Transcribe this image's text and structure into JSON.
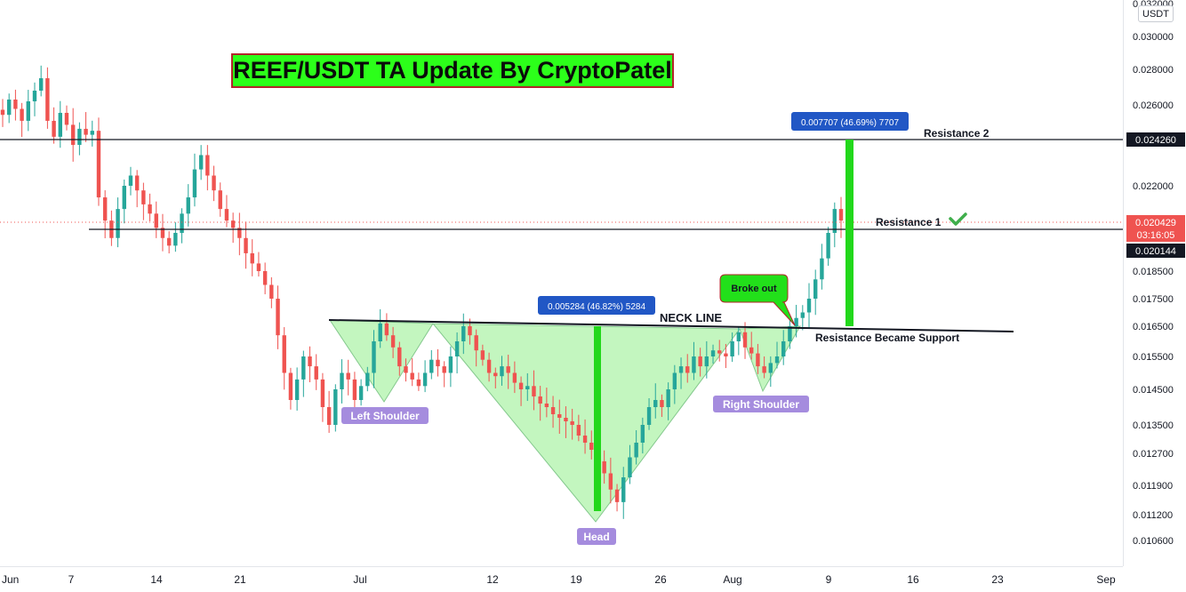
{
  "chart_data": {
    "type": "candlestick",
    "title": "REEF/USDT TA Update By CryptoPatel",
    "currency_unit": "USDT",
    "y_ticks": [
      "0.032000",
      "0.030000",
      "0.028000",
      "0.026000",
      "0.024000",
      "0.022000",
      "0.018500",
      "0.017500",
      "0.016500",
      "0.015500",
      "0.014500",
      "0.013500",
      "0.012700",
      "0.011900",
      "0.011200",
      "0.010600"
    ],
    "x_ticks": [
      "Jun",
      "7",
      "14",
      "21",
      "Jul",
      "12",
      "19",
      "26",
      "Aug",
      "9",
      "16",
      "23",
      "Sep"
    ],
    "price_labels": {
      "resistance2_value": "0.024260",
      "current_price": "0.020429",
      "countdown": "03:16:05",
      "resistance1_value": "0.020144"
    },
    "close_series_approx": [
      0.0255,
      0.0263,
      0.0258,
      0.0252,
      0.0262,
      0.0268,
      0.0275,
      0.0252,
      0.0244,
      0.0256,
      0.025,
      0.024,
      0.0248,
      0.0245,
      0.0247,
      0.0215,
      0.0205,
      0.0198,
      0.021,
      0.022,
      0.0225,
      0.0218,
      0.0212,
      0.0208,
      0.0202,
      0.0198,
      0.0195,
      0.02,
      0.0208,
      0.0215,
      0.0228,
      0.0235,
      0.0225,
      0.0218,
      0.021,
      0.0205,
      0.0202,
      0.0198,
      0.0192,
      0.0188,
      0.0185,
      0.018,
      0.0175,
      0.0162,
      0.015,
      0.0142,
      0.0148,
      0.0155,
      0.0152,
      0.0148,
      0.014,
      0.0135,
      0.0145,
      0.015,
      0.0148,
      0.0142,
      0.0146,
      0.015,
      0.016,
      0.0166,
      0.0162,
      0.0158,
      0.0152,
      0.015,
      0.0148,
      0.0146,
      0.015,
      0.0154,
      0.0152,
      0.015,
      0.0155,
      0.016,
      0.0165,
      0.0162,
      0.0157,
      0.0154,
      0.015,
      0.0149,
      0.0152,
      0.015,
      0.0147,
      0.0145,
      0.0146,
      0.0143,
      0.0141,
      0.014,
      0.0138,
      0.0137,
      0.0136,
      0.0135,
      0.0132,
      0.013,
      0.0128,
      0.0125,
      0.0122,
      0.0118,
      0.0115,
      0.0121,
      0.0126,
      0.013,
      0.0135,
      0.014,
      0.0142,
      0.014,
      0.0145,
      0.015,
      0.0152,
      0.015,
      0.0155,
      0.0152,
      0.0155,
      0.0157,
      0.0156,
      0.0155,
      0.016,
      0.0163,
      0.0158,
      0.0156,
      0.0152,
      0.015,
      0.0153,
      0.0155,
      0.016,
      0.0165,
      0.0168,
      0.017,
      0.0175,
      0.0182,
      0.019,
      0.02,
      0.021,
      0.0205
    ],
    "annotations": [
      {
        "label": "0.007707 (46.69%) 7707"
      },
      {
        "label": "Resistance 2"
      },
      {
        "label": "Resistance 1"
      },
      {
        "label": "0.005284 (46.82%) 5284"
      },
      {
        "label": "NECK LINE"
      },
      {
        "label": "Broke out"
      },
      {
        "label": "Resistance Became Support"
      },
      {
        "label": "Left Shoulder"
      },
      {
        "label": "Head"
      },
      {
        "label": "Right Shoulder"
      }
    ],
    "colors": {
      "up_candle": "#26a69a",
      "down_candle": "#ef5350",
      "pattern_fill": "#b5f5b0",
      "measure_bar": "#22d81b",
      "callout_blue": "#2962ff",
      "label_purple": "#a58cde",
      "title_bg": "#2cff1a"
    }
  }
}
